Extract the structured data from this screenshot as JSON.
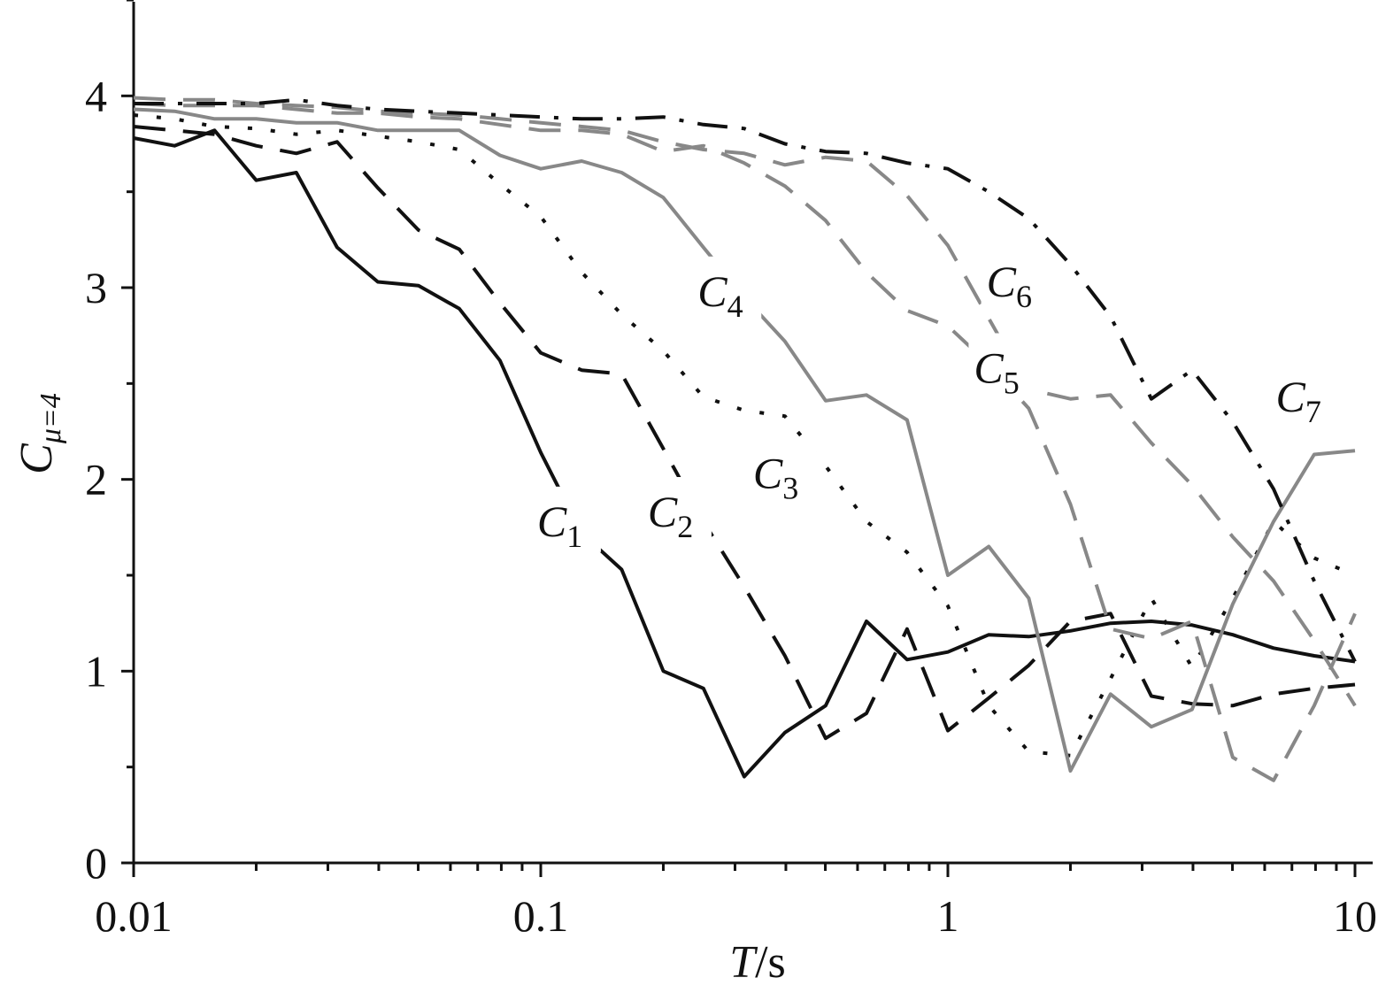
{
  "chart_data": {
    "type": "line",
    "xscale": "log",
    "xlim": [
      0.01,
      10
    ],
    "ylim": [
      0,
      4.5
    ],
    "xticks": [
      {
        "value": 0.01,
        "label": "0.01"
      },
      {
        "value": 0.1,
        "label": "0.1"
      },
      {
        "value": 1,
        "label": "1"
      },
      {
        "value": 10,
        "label": "10"
      }
    ],
    "yticks": [
      {
        "value": 0,
        "label": "0"
      },
      {
        "value": 1,
        "label": "1"
      },
      {
        "value": 2,
        "label": "2"
      },
      {
        "value": 3,
        "label": "3"
      },
      {
        "value": 4,
        "label": "4"
      }
    ],
    "xlabel": {
      "italic": "T",
      "rest": "/s"
    },
    "ylabel": {
      "main": "C",
      "sub": "μ=4"
    },
    "grid": false,
    "x": [
      0.01,
      0.0126,
      0.0158,
      0.02,
      0.0251,
      0.0316,
      0.0398,
      0.0501,
      0.0631,
      0.0794,
      0.1,
      0.126,
      0.158,
      0.2,
      0.251,
      0.316,
      0.398,
      0.501,
      0.631,
      0.794,
      1,
      1.26,
      1.58,
      2,
      2.51,
      3.16,
      3.98,
      5.01,
      6.31,
      7.94,
      10
    ],
    "series": [
      {
        "name": "1",
        "color": "#111111",
        "dash": "solid",
        "values": [
          3.78,
          3.74,
          3.82,
          3.56,
          3.6,
          3.21,
          3.03,
          3.01,
          2.89,
          2.62,
          2.14,
          1.72,
          1.53,
          1.0,
          0.91,
          0.45,
          0.68,
          0.82,
          1.26,
          1.06,
          1.1,
          1.19,
          1.18,
          1.21,
          1.25,
          1.26,
          1.24,
          1.19,
          1.12,
          1.08,
          1.05
        ]
      },
      {
        "name": "2",
        "color": "#111111",
        "dash": "dash",
        "values": [
          3.84,
          3.82,
          3.8,
          3.74,
          3.7,
          3.76,
          3.52,
          3.3,
          3.2,
          2.92,
          2.66,
          2.57,
          2.55,
          2.16,
          1.78,
          1.44,
          1.08,
          0.65,
          0.78,
          1.22,
          0.69,
          0.86,
          1.03,
          1.26,
          1.3,
          0.87,
          0.83,
          0.82,
          0.88,
          0.91,
          0.93
        ]
      },
      {
        "name": "3",
        "color": "#111111",
        "dash": "dot",
        "values": [
          3.9,
          3.88,
          3.84,
          3.83,
          3.8,
          3.82,
          3.79,
          3.76,
          3.72,
          3.54,
          3.37,
          3.08,
          2.86,
          2.67,
          2.43,
          2.36,
          2.33,
          2.07,
          1.78,
          1.62,
          1.34,
          0.82,
          0.58,
          0.56,
          0.96,
          1.38,
          1.02,
          1.38,
          1.78,
          1.59,
          1.5
        ]
      },
      {
        "name": "4",
        "color": "#888888",
        "dash": "solid",
        "values": [
          3.93,
          3.92,
          3.88,
          3.88,
          3.86,
          3.86,
          3.82,
          3.82,
          3.82,
          3.69,
          3.62,
          3.66,
          3.6,
          3.47,
          3.21,
          2.95,
          2.72,
          2.41,
          2.44,
          2.31,
          1.5,
          1.65,
          1.38,
          0.48,
          0.88,
          0.71,
          0.8,
          1.35,
          1.78,
          2.13,
          2.15
        ]
      },
      {
        "name": "5",
        "color": "#888888",
        "dash": "dash",
        "values": [
          3.96,
          3.95,
          3.95,
          3.95,
          3.93,
          3.91,
          3.91,
          3.89,
          3.88,
          3.85,
          3.82,
          3.82,
          3.8,
          3.71,
          3.74,
          3.65,
          3.53,
          3.35,
          3.08,
          2.88,
          2.8,
          2.6,
          2.37,
          1.87,
          1.22,
          1.17,
          1.26,
          0.55,
          0.43,
          0.82,
          1.3
        ]
      },
      {
        "name": "6",
        "color": "#888888",
        "dash": "dash",
        "values": [
          3.99,
          3.98,
          3.98,
          3.96,
          3.95,
          3.94,
          3.92,
          3.91,
          3.9,
          3.88,
          3.86,
          3.84,
          3.82,
          3.76,
          3.72,
          3.7,
          3.64,
          3.68,
          3.66,
          3.48,
          3.22,
          2.84,
          2.47,
          2.42,
          2.44,
          2.19,
          1.97,
          1.7,
          1.47,
          1.16,
          0.82
        ]
      },
      {
        "name": "7",
        "color": "#111111",
        "dash": "dashdot",
        "values": [
          3.96,
          3.96,
          3.96,
          3.96,
          3.98,
          3.95,
          3.93,
          3.92,
          3.91,
          3.9,
          3.89,
          3.88,
          3.88,
          3.89,
          3.85,
          3.83,
          3.75,
          3.71,
          3.7,
          3.65,
          3.62,
          3.5,
          3.36,
          3.12,
          2.85,
          2.42,
          2.57,
          2.3,
          1.95,
          1.47,
          1.05
        ]
      }
    ],
    "annotations": [
      {
        "main": "C",
        "sub": "1",
        "series": "1"
      },
      {
        "main": "C",
        "sub": "2",
        "series": "2"
      },
      {
        "main": "C",
        "sub": "3",
        "series": "3"
      },
      {
        "main": "C",
        "sub": "4",
        "series": "4"
      },
      {
        "main": "C",
        "sub": "5",
        "series": "5"
      },
      {
        "main": "C",
        "sub": "6",
        "series": "6"
      },
      {
        "main": "C",
        "sub": "7",
        "series": "7"
      }
    ]
  }
}
